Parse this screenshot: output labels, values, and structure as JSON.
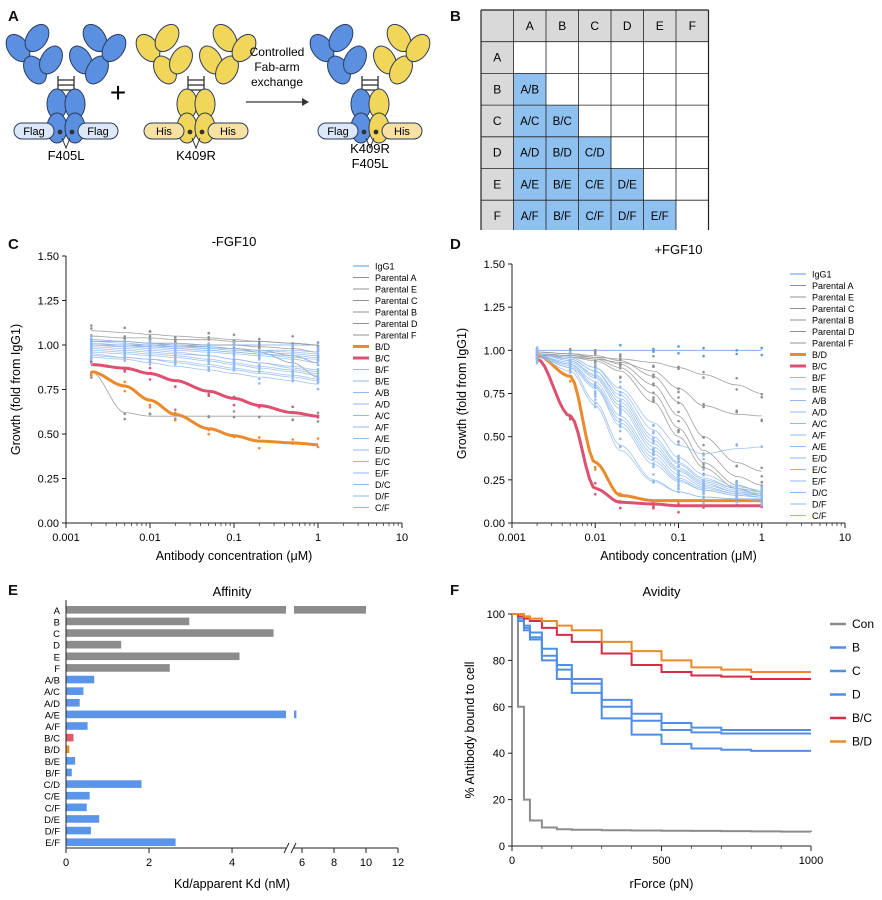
{
  "panels": {
    "A": "A",
    "B": "B",
    "C": "C",
    "D": "D",
    "E": "E",
    "F": "F"
  },
  "schematic": {
    "antibody1_tags": [
      "Flag",
      "Flag"
    ],
    "antibody1_label": "F405L",
    "plus": "+",
    "antibody2_tags": [
      "His",
      "His"
    ],
    "antibody2_label": "K409R",
    "arrow_label": [
      "Controlled",
      "Fab-arm",
      "exchange"
    ],
    "product_tags": [
      "Flag",
      "His"
    ],
    "product_label": [
      "K409R",
      "F405L"
    ],
    "colors": {
      "blue": "#5b8fe0",
      "yellow": "#f2d65a",
      "tag_blue": "#dce8f8",
      "tag_yellow": "#f7e1a3"
    }
  },
  "grid": {
    "cols": [
      "A",
      "B",
      "C",
      "D",
      "E",
      "F"
    ],
    "rows": [
      "A",
      "B",
      "C",
      "D",
      "E",
      "F"
    ],
    "cells": {
      "B": [
        "A/B"
      ],
      "C": [
        "A/C",
        "B/C"
      ],
      "D": [
        "A/D",
        "B/D",
        "C/D"
      ],
      "E": [
        "A/E",
        "B/E",
        "C/E",
        "D/E"
      ],
      "F": [
        "A/F",
        "B/F",
        "C/F",
        "D/F",
        "E/F"
      ]
    },
    "colors": {
      "header": "#d9d9d9",
      "cell": "#8fc1f0"
    }
  },
  "chart_data": [
    {
      "id": "C",
      "type": "line",
      "title": "-FGF10",
      "xlabel": "Antibody concentration (μM)",
      "ylabel": "Growth (fold from IgG1)",
      "xscale": "log",
      "xlim": [
        0.001,
        10
      ],
      "ylim": [
        0,
        1.5
      ],
      "xticks": [
        "0.001",
        "0.01",
        "0.1",
        "1",
        "10"
      ],
      "yticks": [
        "0.00",
        "0.25",
        "0.50",
        "0.75",
        "1.00",
        "1.25",
        "1.50"
      ],
      "legend": [
        "IgG1",
        "Parental A",
        "Parental E",
        "Parental C",
        "Parental B",
        "Parental D",
        "Parental F",
        "B/D",
        "B/C",
        "B/F",
        "B/E",
        "A/B",
        "A/D",
        "A/C",
        "A/F",
        "A/E",
        "E/D",
        "E/C",
        "E/F",
        "D/C",
        "D/F",
        "C/F"
      ],
      "x": [
        0.002,
        0.005,
        0.01,
        0.02,
        0.05,
        0.1,
        0.2,
        0.5,
        1
      ],
      "series": [
        {
          "name": "IgG1",
          "values": [
            1.0,
            1.0,
            1.0,
            1.0,
            1.0,
            1.0,
            1.0,
            1.0,
            1.0
          ]
        },
        {
          "name": "Parental A",
          "values": [
            1.05,
            1.04,
            1.04,
            1.03,
            1.03,
            1.02,
            1.02,
            1.01,
            1.0
          ]
        },
        {
          "name": "Parental E",
          "values": [
            1.02,
            1.02,
            1.01,
            1.01,
            1.0,
            1.0,
            0.99,
            0.98,
            0.96
          ]
        },
        {
          "name": "Parental C",
          "values": [
            0.85,
            0.62,
            0.6,
            0.6,
            0.6,
            0.6,
            0.6,
            0.6,
            0.6
          ]
        },
        {
          "name": "Parental B",
          "values": [
            1.0,
            1.0,
            1.0,
            0.99,
            0.99,
            0.98,
            0.96,
            0.9,
            0.82
          ]
        },
        {
          "name": "Parental D",
          "values": [
            1.03,
            1.02,
            1.01,
            1.0,
            0.99,
            0.98,
            0.97,
            0.94,
            0.9
          ]
        },
        {
          "name": "Parental F",
          "values": [
            1.08,
            1.07,
            1.06,
            1.05,
            1.04,
            1.03,
            1.02,
            1.01,
            1.0
          ]
        },
        {
          "name": "B/D",
          "values": [
            0.85,
            0.77,
            0.69,
            0.61,
            0.53,
            0.49,
            0.46,
            0.45,
            0.44
          ]
        },
        {
          "name": "B/C",
          "values": [
            0.89,
            0.87,
            0.84,
            0.8,
            0.74,
            0.7,
            0.66,
            0.62,
            0.6
          ]
        },
        {
          "name": "B/F",
          "values": [
            0.95,
            0.93,
            0.92,
            0.9,
            0.88,
            0.86,
            0.84,
            0.82,
            0.8
          ]
        },
        {
          "name": "B/E",
          "values": [
            0.93,
            0.92,
            0.9,
            0.88,
            0.86,
            0.84,
            0.82,
            0.8,
            0.78
          ]
        },
        {
          "name": "A/B",
          "values": [
            1.0,
            0.99,
            0.98,
            0.97,
            0.96,
            0.95,
            0.94,
            0.92,
            0.9
          ]
        },
        {
          "name": "A/D",
          "values": [
            0.98,
            0.97,
            0.96,
            0.95,
            0.94,
            0.92,
            0.9,
            0.88,
            0.86
          ]
        },
        {
          "name": "A/C",
          "values": [
            1.02,
            1.01,
            1.0,
            0.99,
            0.98,
            0.97,
            0.96,
            0.95,
            0.94
          ]
        },
        {
          "name": "A/F",
          "values": [
            1.0,
            0.99,
            0.99,
            0.98,
            0.97,
            0.96,
            0.95,
            0.94,
            0.93
          ]
        },
        {
          "name": "A/E",
          "values": [
            0.97,
            0.96,
            0.95,
            0.94,
            0.92,
            0.9,
            0.88,
            0.86,
            0.84
          ]
        },
        {
          "name": "E/D",
          "values": [
            0.99,
            0.98,
            0.97,
            0.96,
            0.94,
            0.92,
            0.9,
            0.87,
            0.85
          ]
        },
        {
          "name": "E/C",
          "values": [
            1.01,
            1.0,
            0.99,
            0.98,
            0.97,
            0.96,
            0.95,
            0.93,
            0.92
          ]
        },
        {
          "name": "E/F",
          "values": [
            1.03,
            1.02,
            1.01,
            1.0,
            0.99,
            0.98,
            0.97,
            0.96,
            0.95
          ]
        },
        {
          "name": "D/C",
          "values": [
            0.96,
            0.95,
            0.94,
            0.93,
            0.91,
            0.89,
            0.87,
            0.85,
            0.83
          ]
        },
        {
          "name": "D/F",
          "values": [
            1.0,
            1.0,
            0.99,
            0.99,
            0.98,
            0.98,
            0.97,
            0.97,
            0.96
          ]
        },
        {
          "name": "C/F",
          "values": [
            0.94,
            0.93,
            0.92,
            0.91,
            0.89,
            0.87,
            0.85,
            0.83,
            0.81
          ]
        }
      ]
    },
    {
      "id": "D",
      "type": "line",
      "title": "+FGF10",
      "xlabel": "Antibody concentration (μM)",
      "ylabel": "Growth (fold from IgG1)",
      "xscale": "log",
      "xlim": [
        0.001,
        10
      ],
      "ylim": [
        0,
        1.5
      ],
      "xticks": [
        "0.001",
        "0.01",
        "0.1",
        "1",
        "10"
      ],
      "yticks": [
        "0.00",
        "0.25",
        "0.50",
        "0.75",
        "1.00",
        "1.25",
        "1.50"
      ],
      "legend": [
        "IgG1",
        "Parental A",
        "Parental E",
        "Parental C",
        "Parental B",
        "Parental D",
        "Parental F",
        "B/D",
        "B/C",
        "B/F",
        "B/E",
        "A/B",
        "A/D",
        "A/C",
        "A/F",
        "A/E",
        "E/D",
        "E/C",
        "E/F",
        "D/C",
        "D/F",
        "C/F"
      ],
      "x": [
        0.002,
        0.005,
        0.01,
        0.02,
        0.05,
        0.1,
        0.2,
        0.5,
        1
      ],
      "series": [
        {
          "name": "IgG1",
          "values": [
            1.0,
            1.0,
            1.0,
            1.0,
            1.0,
            1.0,
            1.0,
            1.0,
            1.0
          ]
        },
        {
          "name": "Parental A",
          "values": [
            0.98,
            0.97,
            0.96,
            0.95,
            0.93,
            0.9,
            0.86,
            0.8,
            0.75
          ]
        },
        {
          "name": "Parental E",
          "values": [
            0.97,
            0.96,
            0.95,
            0.93,
            0.88,
            0.78,
            0.68,
            0.63,
            0.62
          ]
        },
        {
          "name": "Parental C",
          "values": [
            0.99,
            0.98,
            0.97,
            0.94,
            0.85,
            0.7,
            0.5,
            0.35,
            0.3
          ]
        },
        {
          "name": "Parental B",
          "values": [
            0.98,
            0.97,
            0.95,
            0.9,
            0.75,
            0.55,
            0.35,
            0.22,
            0.18
          ]
        },
        {
          "name": "Parental D",
          "values": [
            0.99,
            0.98,
            0.96,
            0.92,
            0.8,
            0.62,
            0.42,
            0.27,
            0.22
          ]
        },
        {
          "name": "Parental F",
          "values": [
            0.97,
            0.96,
            0.94,
            0.88,
            0.7,
            0.5,
            0.32,
            0.2,
            0.16
          ]
        },
        {
          "name": "B/D",
          "values": [
            0.97,
            0.85,
            0.35,
            0.16,
            0.13,
            0.13,
            0.13,
            0.13,
            0.13
          ]
        },
        {
          "name": "B/C",
          "values": [
            0.95,
            0.62,
            0.2,
            0.12,
            0.11,
            0.1,
            0.1,
            0.1,
            0.1
          ]
        },
        {
          "name": "B/F",
          "values": [
            0.96,
            0.9,
            0.7,
            0.45,
            0.25,
            0.18,
            0.15,
            0.14,
            0.14
          ]
        },
        {
          "name": "B/E",
          "values": [
            0.96,
            0.88,
            0.68,
            0.42,
            0.24,
            0.18,
            0.15,
            0.14,
            0.13
          ]
        },
        {
          "name": "A/B",
          "values": [
            0.97,
            0.92,
            0.8,
            0.6,
            0.38,
            0.26,
            0.2,
            0.17,
            0.16
          ]
        },
        {
          "name": "A/D",
          "values": [
            0.97,
            0.93,
            0.84,
            0.66,
            0.42,
            0.3,
            0.22,
            0.18,
            0.17
          ]
        },
        {
          "name": "A/C",
          "values": [
            0.98,
            0.95,
            0.88,
            0.74,
            0.5,
            0.35,
            0.26,
            0.2,
            0.18
          ]
        },
        {
          "name": "A/F",
          "values": [
            0.98,
            0.94,
            0.86,
            0.7,
            0.46,
            0.32,
            0.24,
            0.19,
            0.17
          ]
        },
        {
          "name": "A/E",
          "values": [
            0.98,
            0.96,
            0.9,
            0.78,
            0.58,
            0.45,
            0.4,
            0.43,
            0.44
          ]
        },
        {
          "name": "E/D",
          "values": [
            0.97,
            0.92,
            0.82,
            0.62,
            0.4,
            0.28,
            0.21,
            0.17,
            0.15
          ]
        },
        {
          "name": "E/C",
          "values": [
            0.97,
            0.9,
            0.78,
            0.56,
            0.34,
            0.24,
            0.19,
            0.16,
            0.15
          ]
        },
        {
          "name": "E/F",
          "values": [
            0.98,
            0.95,
            0.88,
            0.72,
            0.48,
            0.34,
            0.25,
            0.2,
            0.18
          ]
        },
        {
          "name": "D/C",
          "values": [
            0.97,
            0.91,
            0.79,
            0.58,
            0.36,
            0.25,
            0.19,
            0.16,
            0.15
          ]
        },
        {
          "name": "D/F",
          "values": [
            0.98,
            0.94,
            0.85,
            0.68,
            0.44,
            0.31,
            0.23,
            0.18,
            0.16
          ]
        },
        {
          "name": "C/F",
          "values": [
            0.98,
            0.96,
            0.9,
            0.76,
            0.54,
            0.38,
            0.28,
            0.21,
            0.19
          ]
        }
      ]
    },
    {
      "id": "E",
      "type": "bar",
      "orientation": "horizontal",
      "title": "Affinity",
      "xlabel": "Kd/apparent Kd (nM)",
      "ylabel": "",
      "axis_break": [
        5.3,
        5.5
      ],
      "xticks": [
        "0",
        "2",
        "4",
        "6",
        "8",
        "10",
        "12"
      ],
      "xlim": [
        0,
        12
      ],
      "categories": [
        "A",
        "B",
        "C",
        "D",
        "E",
        "F",
        "A/B",
        "A/C",
        "A/D",
        "A/E",
        "A/F",
        "B/C",
        "B/D",
        "B/E",
        "B/F",
        "C/D",
        "C/E",
        "C/F",
        "D/E",
        "D/F",
        "E/F"
      ],
      "values": [
        10.0,
        2.97,
        5.0,
        1.33,
        4.18,
        2.5,
        0.68,
        0.42,
        0.33,
        5.65,
        0.52,
        0.18,
        0.08,
        0.22,
        0.14,
        1.82,
        0.57,
        0.5,
        0.8,
        0.6,
        2.64
      ],
      "colors": [
        "#8c8c8c",
        "#8c8c8c",
        "#8c8c8c",
        "#8c8c8c",
        "#8c8c8c",
        "#8c8c8c",
        "#5b95ea",
        "#5b95ea",
        "#5b95ea",
        "#5b95ea",
        "#5b95ea",
        "#e05a6a",
        "#ea8a2a",
        "#5b95ea",
        "#5b95ea",
        "#5b95ea",
        "#5b95ea",
        "#5b95ea",
        "#5b95ea",
        "#5b95ea",
        "#5b95ea"
      ]
    },
    {
      "id": "F",
      "type": "line",
      "title": "Avidity",
      "xlabel": "rForce (pN)",
      "ylabel": "% Antibody bound to cell",
      "xlim": [
        0,
        1000
      ],
      "ylim": [
        0,
        100
      ],
      "xticks": [
        "0",
        "500",
        "1000"
      ],
      "yticks": [
        "0",
        "20",
        "40",
        "60",
        "80",
        "100"
      ],
      "legend": [
        "Con",
        "B",
        "C",
        "D",
        "B/C",
        "B/D"
      ],
      "x": [
        0,
        20,
        40,
        60,
        100,
        150,
        200,
        300,
        400,
        500,
        600,
        700,
        800,
        900,
        1000
      ],
      "series": [
        {
          "name": "Con",
          "values": [
            100,
            60,
            20,
            11,
            8,
            7.2,
            7,
            6.8,
            6.7,
            6.6,
            6.5,
            6.4,
            6.3,
            6.2,
            6.1
          ]
        },
        {
          "name": "B",
          "values": [
            100,
            98,
            95,
            92,
            85,
            78,
            72,
            63,
            57,
            53,
            51,
            50,
            50,
            50,
            50
          ]
        },
        {
          "name": "C",
          "values": [
            100,
            97,
            94,
            90,
            82,
            76,
            70,
            60,
            54,
            50,
            49,
            48.5,
            48.5,
            48.5,
            48.5
          ]
        },
        {
          "name": "D",
          "values": [
            100,
            97,
            93,
            89,
            80,
            72,
            66,
            55,
            48,
            44,
            42,
            41.5,
            41,
            41,
            41
          ]
        },
        {
          "name": "B/C",
          "values": [
            100,
            99,
            98,
            97,
            94,
            91,
            88,
            83,
            78,
            75,
            73.5,
            73,
            72,
            72,
            72
          ]
        },
        {
          "name": "B/D",
          "values": [
            100,
            100,
            99,
            98,
            97,
            95,
            93,
            88,
            84,
            80,
            77,
            76,
            75,
            75,
            75
          ]
        }
      ],
      "colors": {
        "Con": "#8c8c8c",
        "B": "#4f8fe8",
        "C": "#4f8fe8",
        "D": "#4f8fe8",
        "B/C": "#d62c44",
        "B/D": "#ea8a2a"
      }
    }
  ],
  "styles": {
    "gray": "#8c8c8c",
    "blue": "#5b95ea",
    "light_blue": "#8fbaf0",
    "red": "#dd5070",
    "orange": "#ea8a2a"
  }
}
